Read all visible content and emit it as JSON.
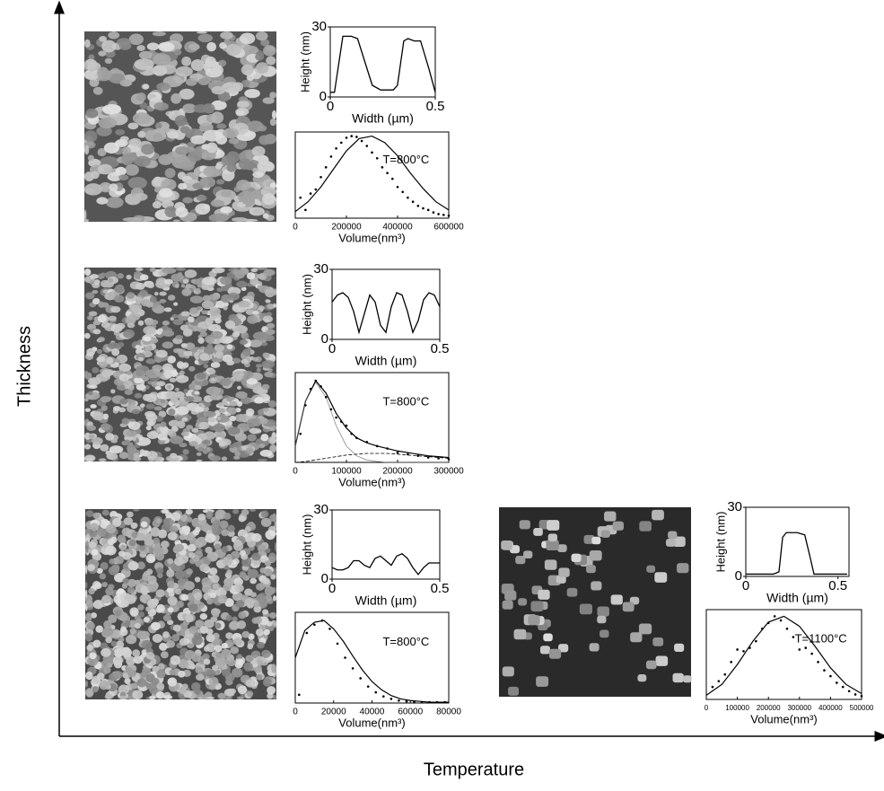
{
  "axis_labels": {
    "x": "Temperature",
    "y": "Thickness"
  },
  "chart_data": [
    {
      "type": "line",
      "xlabel": "Width (µm)",
      "ylabel": "Height (nm)",
      "xlim": [
        0,
        0.5
      ],
      "xticks": [
        0,
        0.5
      ],
      "ylim": [
        0,
        30
      ],
      "yticks": [
        0,
        30
      ],
      "x": [
        0,
        0.02,
        0.05,
        0.06,
        0.1,
        0.13,
        0.2,
        0.24,
        0.27,
        0.3,
        0.32,
        0.35,
        0.37,
        0.4,
        0.43,
        0.47,
        0.5
      ],
      "values": [
        2,
        2,
        20,
        26,
        26,
        25,
        5,
        3,
        3,
        3,
        5,
        24,
        25,
        24,
        24,
        12,
        2
      ]
    },
    {
      "type": "scatter",
      "xlabel": "Volume(nm³)",
      "annotation": "T=800°C",
      "xlim": [
        0,
        600000
      ],
      "xticks": [
        0,
        200000,
        400000,
        600000
      ],
      "ylim": [
        0,
        1.05
      ],
      "x": [
        20000,
        40000,
        60000,
        80000,
        100000,
        120000,
        140000,
        160000,
        180000,
        200000,
        220000,
        240000,
        260000,
        280000,
        300000,
        320000,
        340000,
        360000,
        380000,
        400000,
        420000,
        440000,
        460000,
        480000,
        500000,
        520000,
        540000,
        560000,
        580000,
        600000
      ],
      "values": [
        0.25,
        0.1,
        0.3,
        0.35,
        0.5,
        0.62,
        0.75,
        0.85,
        0.92,
        0.98,
        1.0,
        0.99,
        0.94,
        0.88,
        0.8,
        0.73,
        0.62,
        0.55,
        0.48,
        0.38,
        0.32,
        0.25,
        0.2,
        0.15,
        0.12,
        0.1,
        0.07,
        0.05,
        0.04,
        0.03
      ],
      "fit_x": [
        0,
        50000,
        100000,
        150000,
        200000,
        250000,
        300000,
        350000,
        400000,
        450000,
        500000,
        550000,
        600000
      ],
      "fits": [
        {
          "style": "solid",
          "values": [
            0.08,
            0.2,
            0.38,
            0.6,
            0.82,
            0.97,
            1.0,
            0.92,
            0.76,
            0.55,
            0.36,
            0.2,
            0.1
          ]
        }
      ]
    },
    {
      "type": "line",
      "xlabel": "Width (µm)",
      "ylabel": "Height (nm)",
      "xlim": [
        0,
        0.5
      ],
      "xticks": [
        0,
        0.5
      ],
      "ylim": [
        0,
        30
      ],
      "yticks": [
        0,
        30
      ],
      "x": [
        0,
        0.025,
        0.05,
        0.075,
        0.1,
        0.125,
        0.15,
        0.175,
        0.2,
        0.225,
        0.25,
        0.275,
        0.3,
        0.325,
        0.35,
        0.375,
        0.4,
        0.425,
        0.45,
        0.475,
        0.5
      ],
      "values": [
        16,
        19,
        20,
        18,
        12,
        3,
        11,
        19,
        16,
        6,
        3,
        14,
        20,
        19,
        12,
        3,
        8,
        17,
        20,
        19,
        14
      ]
    },
    {
      "type": "scatter",
      "xlabel": "Volume(nm³)",
      "annotation": "T=800°C",
      "xlim": [
        0,
        300000
      ],
      "xticks": [
        0,
        100000,
        200000,
        300000
      ],
      "ylim": [
        0,
        1.1
      ],
      "x": [
        10000,
        20000,
        30000,
        40000,
        50000,
        60000,
        70000,
        80000,
        90000,
        100000,
        110000,
        120000,
        140000,
        160000,
        180000,
        200000,
        220000,
        240000,
        260000,
        280000,
        300000
      ],
      "values": [
        0.35,
        0.7,
        0.9,
        1.0,
        0.93,
        0.8,
        0.65,
        0.55,
        0.5,
        0.45,
        0.35,
        0.3,
        0.25,
        0.2,
        0.17,
        0.12,
        0.1,
        0.08,
        0.06,
        0.05,
        0.04
      ],
      "fit_x": [
        0,
        20000,
        40000,
        60000,
        80000,
        100000,
        120000,
        140000,
        160000,
        180000,
        200000,
        220000,
        240000,
        260000,
        280000,
        300000
      ],
      "fits": [
        {
          "style": "solid",
          "values": [
            0.2,
            0.75,
            1.0,
            0.85,
            0.6,
            0.42,
            0.3,
            0.24,
            0.2,
            0.17,
            0.14,
            0.12,
            0.1,
            0.08,
            0.07,
            0.06
          ]
        },
        {
          "style": "thin",
          "values": [
            0.2,
            0.75,
            0.98,
            0.8,
            0.45,
            0.2,
            0.08,
            0.03,
            0.01,
            0,
            0,
            0,
            0,
            0,
            0,
            0
          ]
        },
        {
          "style": "dash",
          "values": [
            0,
            0.01,
            0.03,
            0.05,
            0.07,
            0.09,
            0.1,
            0.11,
            0.11,
            0.11,
            0.1,
            0.09,
            0.08,
            0.07,
            0.06,
            0.05
          ]
        }
      ]
    },
    {
      "type": "line",
      "xlabel": "Width (µm)",
      "ylabel": "Height (nm)",
      "xlim": [
        0,
        0.5
      ],
      "xticks": [
        0,
        0.5
      ],
      "ylim": [
        0,
        30
      ],
      "yticks": [
        0,
        30
      ],
      "x": [
        0,
        0.025,
        0.05,
        0.075,
        0.1,
        0.125,
        0.15,
        0.175,
        0.2,
        0.225,
        0.25,
        0.275,
        0.3,
        0.325,
        0.35,
        0.375,
        0.4,
        0.425,
        0.45,
        0.475,
        0.5
      ],
      "values": [
        5,
        4,
        4,
        5,
        8,
        8,
        6,
        5,
        9,
        10,
        8,
        6,
        10,
        11,
        9,
        5,
        2,
        5,
        7,
        7,
        7
      ]
    },
    {
      "type": "scatter",
      "xlabel": "Volume(nm³)",
      "annotation": "T=800°C",
      "xlim": [
        0,
        80000
      ],
      "xticks": [
        0,
        20000,
        40000,
        60000,
        80000
      ],
      "ylim": [
        0,
        1.1
      ],
      "x": [
        2000,
        6000,
        10000,
        14000,
        18000,
        22000,
        26000,
        30000,
        34000,
        38000,
        42000,
        46000,
        50000,
        54000,
        58000,
        62000,
        66000,
        70000,
        74000,
        78000
      ],
      "values": [
        0.1,
        0.85,
        0.95,
        1.0,
        0.9,
        0.72,
        0.55,
        0.42,
        0.3,
        0.2,
        0.13,
        0.08,
        0.05,
        0.03,
        0.02,
        0.01,
        0.01,
        0.01,
        0.01,
        0.01
      ],
      "fit_x": [
        0,
        5000,
        10000,
        15000,
        20000,
        25000,
        30000,
        35000,
        40000,
        45000,
        50000,
        55000,
        60000,
        65000,
        70000,
        75000,
        80000
      ],
      "fits": [
        {
          "style": "solid",
          "values": [
            0.55,
            0.88,
            0.98,
            1.0,
            0.9,
            0.75,
            0.57,
            0.4,
            0.26,
            0.16,
            0.09,
            0.05,
            0.03,
            0.02,
            0.01,
            0.01,
            0.01
          ]
        }
      ]
    },
    {
      "type": "line",
      "xlabel": "Width (µm)",
      "ylabel": "Height (nm)",
      "xlim": [
        0,
        0.56
      ],
      "xticks": [
        0,
        0.5
      ],
      "ylim": [
        0,
        30
      ],
      "yticks": [
        0,
        30
      ],
      "x": [
        0,
        0.1,
        0.15,
        0.18,
        0.2,
        0.22,
        0.28,
        0.32,
        0.35,
        0.37,
        0.4,
        0.45,
        0.55
      ],
      "values": [
        1,
        1,
        1,
        2,
        17,
        19,
        19,
        18,
        8,
        1,
        1,
        1,
        1
      ]
    },
    {
      "type": "scatter",
      "xlabel": "Volume(nm³)",
      "annotation": "T=1100°C",
      "xlim": [
        0,
        500000
      ],
      "xticks": [
        0,
        100000,
        200000,
        300000,
        400000,
        500000
      ],
      "ylim": [
        0,
        1.08
      ],
      "x": [
        20000,
        40000,
        60000,
        80000,
        100000,
        120000,
        140000,
        160000,
        180000,
        200000,
        220000,
        240000,
        260000,
        280000,
        300000,
        320000,
        340000,
        360000,
        380000,
        400000,
        420000,
        440000,
        460000,
        480000,
        500000
      ],
      "values": [
        0.15,
        0.22,
        0.3,
        0.45,
        0.6,
        0.58,
        0.62,
        0.7,
        0.85,
        0.92,
        1.0,
        0.95,
        0.85,
        0.75,
        0.6,
        0.62,
        0.55,
        0.45,
        0.35,
        0.28,
        0.2,
        0.15,
        0.1,
        0.06,
        0.04
      ],
      "fit_x": [
        0,
        50000,
        100000,
        150000,
        200000,
        250000,
        300000,
        350000,
        400000,
        450000,
        500000
      ],
      "fits": [
        {
          "style": "solid",
          "values": [
            0.05,
            0.18,
            0.42,
            0.7,
            0.93,
            1.0,
            0.88,
            0.64,
            0.38,
            0.18,
            0.07
          ]
        }
      ]
    }
  ]
}
